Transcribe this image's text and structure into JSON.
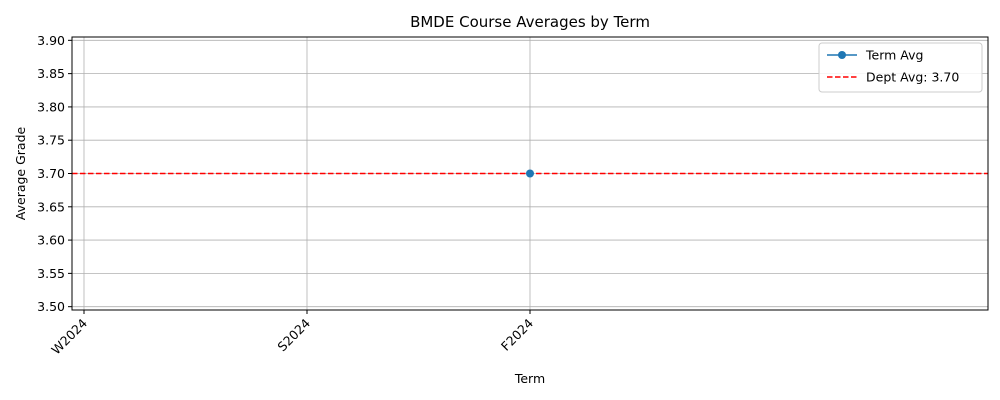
{
  "chart_data": {
    "type": "line",
    "title": "BMDE Course Averages by Term",
    "xlabel": "Term",
    "ylabel": "Average Grade",
    "categories": [
      "W2024",
      "S2024",
      "F2024"
    ],
    "series": [
      {
        "name": "Term Avg",
        "color": "#1f77b4",
        "marker": "circle",
        "points": [
          {
            "x": "F2024",
            "y": 3.7
          }
        ]
      }
    ],
    "reference_line": {
      "label": "Dept Avg: 3.70",
      "value": 3.7,
      "color": "#ff0000",
      "style": "dashed"
    },
    "ylim": [
      3.495,
      3.905
    ],
    "yticks": [
      3.5,
      3.55,
      3.6,
      3.65,
      3.7,
      3.75,
      3.8,
      3.85,
      3.9
    ],
    "ytick_labels": [
      "3.50",
      "3.55",
      "3.60",
      "3.65",
      "3.70",
      "3.75",
      "3.80",
      "3.85",
      "3.90"
    ],
    "grid": true,
    "legend_position": "top-right"
  }
}
